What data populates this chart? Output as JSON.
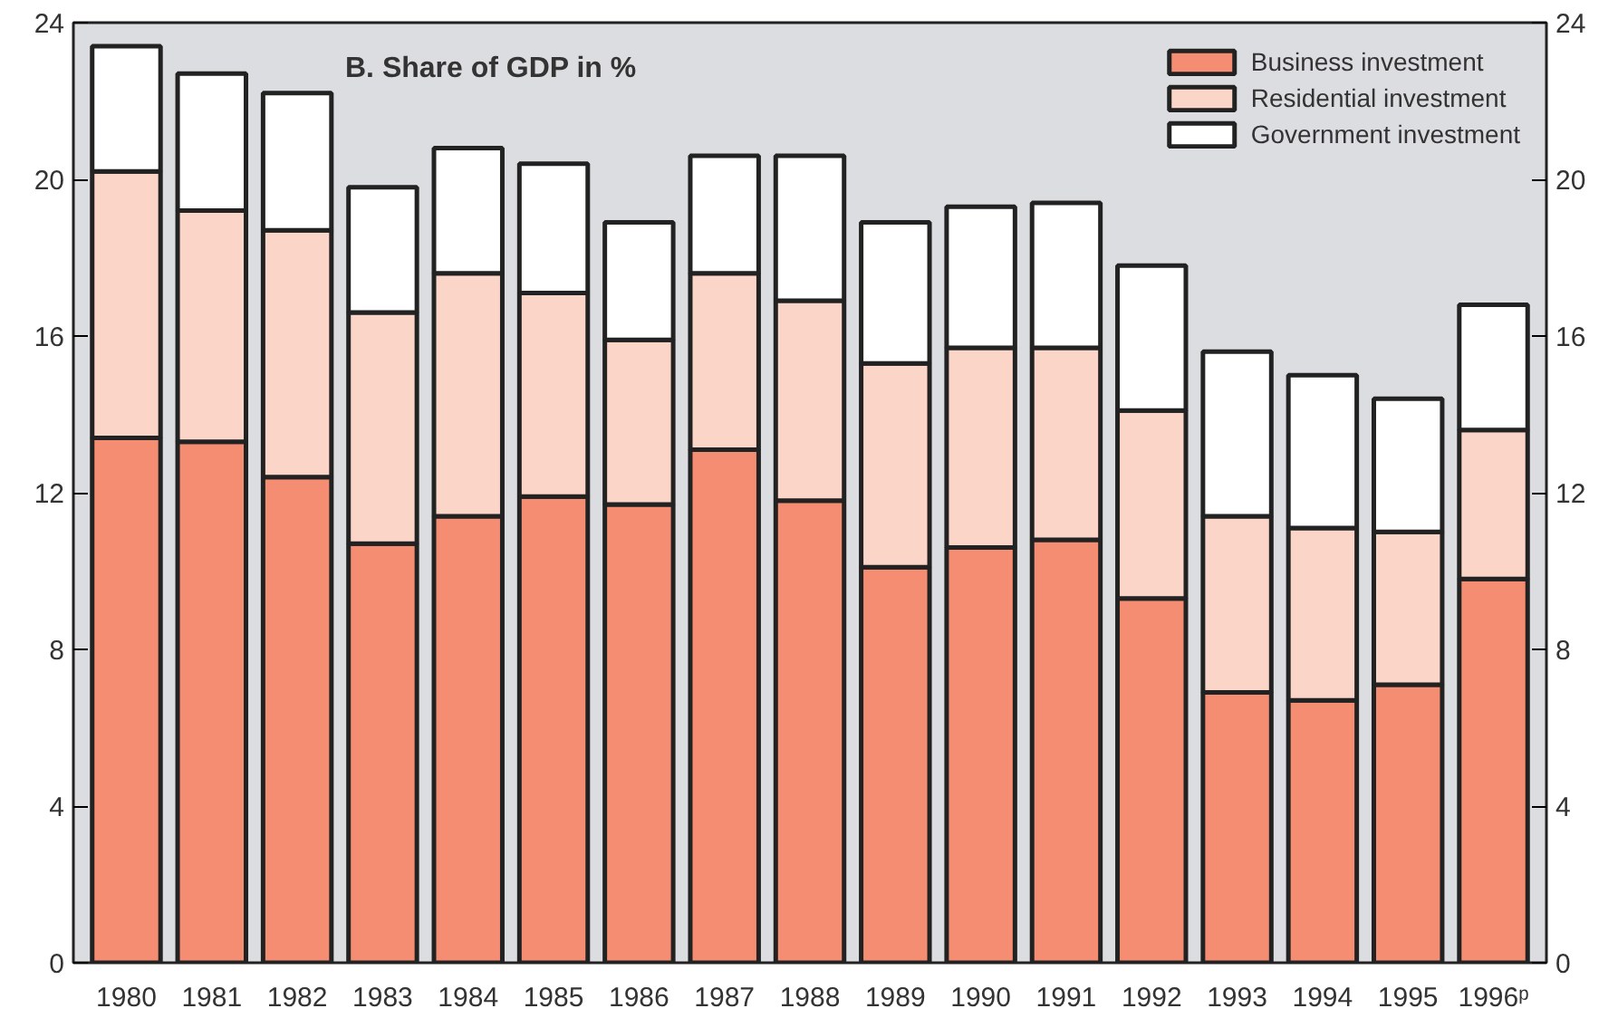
{
  "chart_data": {
    "type": "bar",
    "title": "B.   Share of GDP in %",
    "stacked": true,
    "categories": [
      "1980",
      "1981",
      "1982",
      "1983",
      "1984",
      "1985",
      "1986",
      "1987",
      "1988",
      "1989",
      "1990",
      "1991",
      "1992",
      "1993",
      "1994",
      "1995",
      "1996ᵖ"
    ],
    "series": [
      {
        "name": "Business investment",
        "color": "#f58d72",
        "values": [
          13.4,
          13.3,
          12.4,
          10.7,
          11.4,
          11.9,
          11.7,
          13.1,
          11.8,
          10.1,
          10.6,
          10.8,
          9.3,
          6.9,
          6.7,
          7.1,
          9.8
        ]
      },
      {
        "name": "Residential investment",
        "color": "#fbd5c8",
        "values": [
          6.8,
          5.9,
          6.3,
          5.9,
          6.2,
          5.2,
          4.2,
          4.5,
          5.1,
          5.2,
          5.1,
          4.9,
          4.8,
          4.5,
          4.4,
          3.9,
          3.8
        ]
      },
      {
        "name": "Government investment",
        "color": "#ffffff",
        "values": [
          3.2,
          3.5,
          3.5,
          3.2,
          3.2,
          3.3,
          3.0,
          3.0,
          3.7,
          3.6,
          3.6,
          3.7,
          3.7,
          4.2,
          3.9,
          3.4,
          3.2
        ]
      }
    ],
    "ylim": [
      0,
      24
    ],
    "yticks": [
      0,
      4,
      8,
      12,
      16,
      20,
      24
    ],
    "y2lim": [
      0,
      24
    ],
    "y2ticks": [
      0,
      4,
      8,
      12,
      16,
      20,
      24
    ],
    "legend": "top right",
    "grid": false
  }
}
